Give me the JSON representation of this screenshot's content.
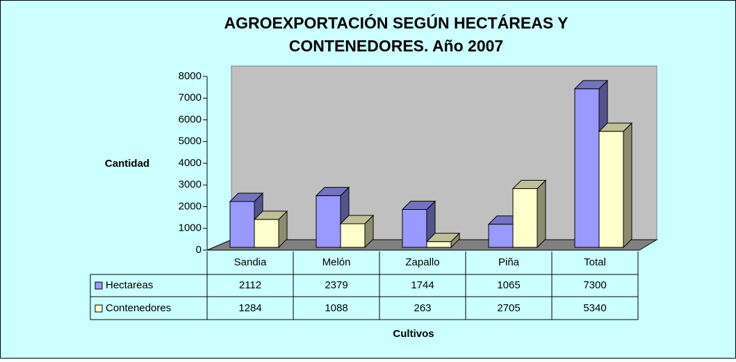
{
  "chart_data": {
    "type": "bar3d",
    "title": [
      "AGROEXPORTACIÓN SEGÚN HECTÁREAS Y",
      "CONTENEDORES.  Año 2007"
    ],
    "y_label": "Cantidad",
    "x_label": "Cultivos",
    "categories": [
      "Sandia",
      "Melón",
      "Zapallo",
      "Piña",
      "Total"
    ],
    "series": [
      {
        "name": "Hectareas",
        "color": "#9999ff",
        "values": [
          2112,
          2379,
          1744,
          1065,
          7300
        ]
      },
      {
        "name": "Contenedores",
        "color": "#ffffcc",
        "values": [
          1284,
          1088,
          263,
          2705,
          5340
        ]
      }
    ],
    "ylim": [
      0,
      8000
    ],
    "yticks": [
      0,
      1000,
      2000,
      3000,
      4000,
      5000,
      6000,
      7000,
      8000
    ]
  }
}
